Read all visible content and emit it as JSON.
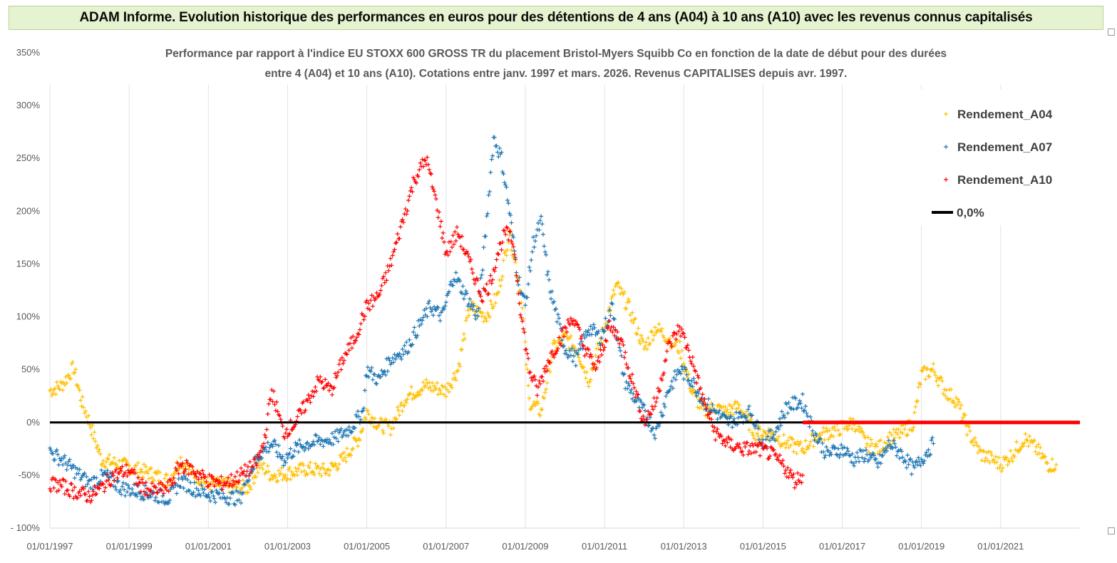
{
  "banner": {
    "title": "ADAM Informe. Evolution historique des performances en euros pour des détentions de 4 ans (A04) à 10 ans (A10) avec les revenus connus capitalisés"
  },
  "chart_data": {
    "type": "scatter",
    "title_line1": "Performance par rapport à l'indice EU STOXX 600 GROSS TR  du placement Bristol-Myers Squibb Co en fonction de la date de début pour des durées",
    "title_line2": "entre 4 (A04) et 10 ans (A10). Cotations entre janv. 1997 et mars. 2026. Revenus CAPITALISES depuis avr. 1997.",
    "xlim": [
      1997.0,
      2023.0
    ],
    "ylim": [
      -100,
      350
    ],
    "y_ticks": [
      350,
      300,
      250,
      200,
      150,
      100,
      50,
      0,
      -50,
      -100
    ],
    "y_tick_labels": [
      "350%",
      "300%",
      "250%",
      "200%",
      "150%",
      "100%",
      "50%",
      "0%",
      "-50%",
      "- 100%"
    ],
    "x_ticks": [
      1997,
      1999,
      2001,
      2003,
      2005,
      2007,
      2009,
      2011,
      2013,
      2015,
      2017,
      2019,
      2021
    ],
    "x_tick_labels": [
      "01/01/1997",
      "01/01/1999",
      "01/01/2001",
      "01/01/2003",
      "01/01/2005",
      "01/01/2007",
      "01/01/2009",
      "01/01/2011",
      "01/01/2013",
      "01/01/2015",
      "01/01/2017",
      "01/01/2019",
      "01/01/2021"
    ],
    "grid": "vertical",
    "legend_position": "top-right",
    "series": [
      {
        "name": "Rendement_A04",
        "color": "#ffc000",
        "marker": "+",
        "x": [
          1997.0,
          1997.3,
          1997.6,
          1997.8,
          1998.0,
          1998.3,
          1998.6,
          1999.0,
          1999.5,
          2000.0,
          2000.3,
          2000.6,
          2001.0,
          2001.5,
          2002.0,
          2002.3,
          2002.6,
          2003.0,
          2003.5,
          2004.0,
          2004.4,
          2004.8,
          2005.0,
          2005.3,
          2005.6,
          2006.0,
          2006.5,
          2007.0,
          2007.3,
          2007.6,
          2008.0,
          2008.3,
          2008.6,
          2008.9,
          2009.1,
          2009.4,
          2009.7,
          2010.0,
          2010.3,
          2010.6,
          2011.0,
          2011.3,
          2011.6,
          2012.0,
          2012.3,
          2012.6,
          2012.9,
          2013.2,
          2013.5,
          2013.8,
          2014.0,
          2014.4,
          2014.8,
          2015.2,
          2015.6,
          2016.0,
          2016.3,
          2016.6,
          2017.0,
          2017.3,
          2017.6,
          2017.9,
          2018.2,
          2018.5,
          2018.8,
          2019.0,
          2019.3,
          2019.6,
          2019.9,
          2020.2,
          2020.5,
          2020.8,
          2021.0,
          2021.3,
          2021.6,
          2021.9,
          2022.2,
          2022.4
        ],
        "y": [
          30,
          35,
          52,
          20,
          0,
          -35,
          -38,
          -42,
          -48,
          -55,
          -35,
          -48,
          -58,
          -60,
          -62,
          -40,
          -50,
          -48,
          -44,
          -46,
          -35,
          -15,
          10,
          -2,
          -5,
          25,
          35,
          30,
          50,
          110,
          100,
          120,
          180,
          120,
          20,
          10,
          70,
          80,
          70,
          40,
          90,
          130,
          110,
          70,
          90,
          80,
          70,
          30,
          10,
          15,
          10,
          15,
          -10,
          -10,
          -20,
          -25,
          -15,
          -10,
          -5,
          0,
          -20,
          -25,
          -15,
          -10,
          0,
          45,
          50,
          30,
          20,
          -10,
          -30,
          -35,
          -40,
          -30,
          -15,
          -25,
          -40,
          -40
        ]
      },
      {
        "name": "Rendement_A07",
        "color": "#1f77b4",
        "marker": "+",
        "x": [
          1997.0,
          1997.3,
          1997.6,
          1998.0,
          1998.4,
          1998.8,
          1999.2,
          1999.6,
          2000.0,
          2000.3,
          2000.6,
          2001.0,
          2001.4,
          2001.8,
          2002.0,
          2002.3,
          2002.6,
          2002.9,
          2003.2,
          2003.5,
          2003.8,
          2004.2,
          2004.6,
          2004.9,
          2005.0,
          2005.3,
          2005.6,
          2006.0,
          2006.3,
          2006.6,
          2006.9,
          2007.2,
          2007.5,
          2007.8,
          2008.0,
          2008.2,
          2008.4,
          2008.6,
          2008.8,
          2009.0,
          2009.2,
          2009.4,
          2009.6,
          2009.8,
          2010.0,
          2010.3,
          2010.6,
          2010.9,
          2011.2,
          2011.5,
          2011.8,
          2012.0,
          2012.3,
          2012.6,
          2012.9,
          2013.2,
          2013.5,
          2013.8,
          2014.1,
          2014.4,
          2014.7,
          2015.0,
          2015.3,
          2015.6,
          2016.0,
          2016.3,
          2016.6,
          2017.0,
          2017.3,
          2017.6,
          2017.9,
          2018.2,
          2018.5,
          2018.8,
          2019.0,
          2019.3
        ],
        "y": [
          -28,
          -35,
          -45,
          -58,
          -50,
          -62,
          -65,
          -68,
          -72,
          -55,
          -62,
          -68,
          -70,
          -72,
          -50,
          -30,
          -20,
          -35,
          -25,
          -20,
          -18,
          -15,
          -5,
          10,
          50,
          40,
          60,
          70,
          90,
          110,
          100,
          140,
          120,
          100,
          180,
          270,
          250,
          200,
          140,
          110,
          170,
          190,
          130,
          100,
          70,
          60,
          90,
          80,
          110,
          40,
          20,
          10,
          -10,
          30,
          50,
          40,
          20,
          10,
          0,
          5,
          10,
          -20,
          -10,
          15,
          20,
          -10,
          -30,
          -25,
          -35,
          -30,
          -40,
          -20,
          -30,
          -45,
          -35,
          -20
        ]
      },
      {
        "name": "Rendement_A10",
        "color": "#ff0000",
        "marker": "+",
        "x": [
          1997.0,
          1997.3,
          1997.6,
          1998.0,
          1998.3,
          1998.6,
          1999.0,
          1999.3,
          1999.6,
          2000.0,
          2000.3,
          2000.6,
          2001.0,
          2001.3,
          2001.6,
          2002.0,
          2002.2,
          2002.4,
          2002.6,
          2002.9,
          2003.2,
          2003.5,
          2003.8,
          2004.1,
          2004.4,
          2004.7,
          2005.0,
          2005.3,
          2005.6,
          2005.9,
          2006.2,
          2006.5,
          2006.8,
          2007.0,
          2007.3,
          2007.6,
          2007.9,
          2008.1,
          2008.3,
          2008.5,
          2008.7,
          2008.9,
          2009.1,
          2009.3,
          2009.6,
          2009.9,
          2010.2,
          2010.5,
          2010.8,
          2011.1,
          2011.4,
          2011.7,
          2012.0,
          2012.3,
          2012.6,
          2012.9,
          2013.2,
          2013.5,
          2013.8,
          2014.1,
          2014.5,
          2014.9,
          2015.2,
          2015.5,
          2015.8,
          2016.0
        ],
        "y": [
          -58,
          -60,
          -65,
          -70,
          -62,
          -50,
          -45,
          -60,
          -65,
          -62,
          -40,
          -45,
          -55,
          -58,
          -55,
          -45,
          -40,
          -20,
          30,
          -10,
          0,
          20,
          40,
          30,
          60,
          80,
          110,
          120,
          150,
          190,
          230,
          250,
          200,
          160,
          180,
          150,
          120,
          130,
          160,
          180,
          170,
          100,
          50,
          30,
          60,
          80,
          100,
          70,
          50,
          90,
          80,
          40,
          0,
          20,
          70,
          90,
          60,
          20,
          -10,
          -20,
          -25,
          -25,
          -30,
          -40,
          -55,
          -50
        ]
      },
      {
        "name": "0,0%",
        "color": "#000000",
        "marker": "line",
        "x": [
          1997.0,
          2016.0
        ],
        "y": [
          0,
          0
        ]
      },
      {
        "name": "",
        "color": "#ff0000",
        "marker": "line-thick",
        "x": [
          2016.0,
          2023.0
        ],
        "y": [
          0,
          0
        ]
      }
    ]
  }
}
